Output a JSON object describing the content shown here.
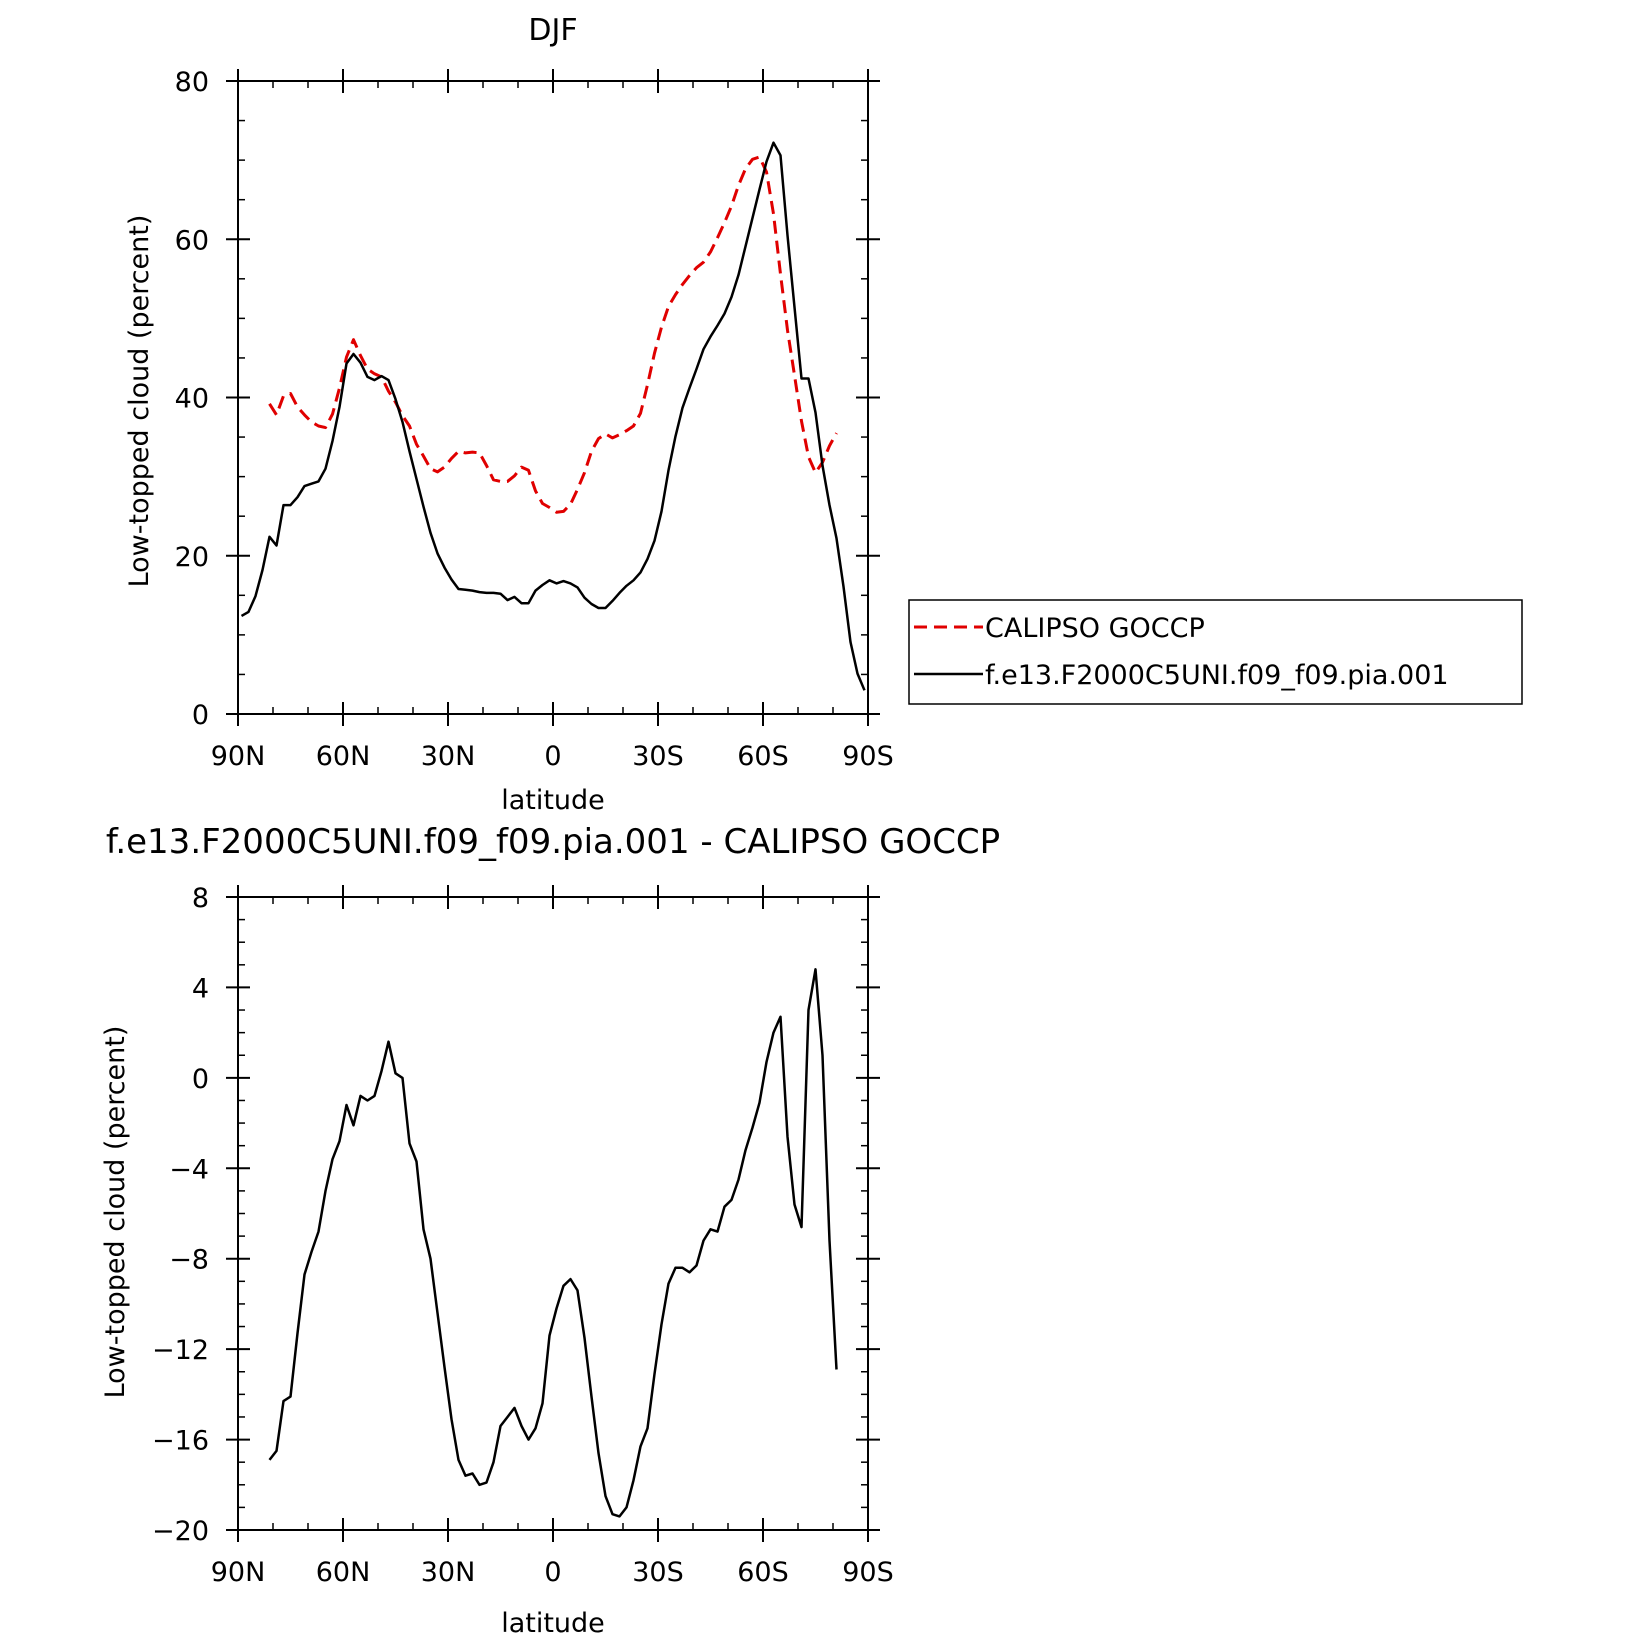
{
  "chart_data": [
    {
      "type": "line",
      "title": "DJF",
      "xlabel": "latitude",
      "ylabel": "Low-topped cloud (percent)",
      "xlim": [
        90,
        -90
      ],
      "ylim": [
        0,
        80
      ],
      "x_ticks": [
        90,
        60,
        30,
        0,
        -30,
        -60,
        -90
      ],
      "x_tick_labels": [
        "90N",
        "60N",
        "30N",
        "0",
        "30S",
        "60S",
        "90S"
      ],
      "y_ticks": [
        0,
        20,
        40,
        60,
        80
      ],
      "y_tick_labels": [
        "0",
        "20",
        "40",
        "60",
        "80"
      ],
      "grid": false,
      "legend_position": "right",
      "series": [
        {
          "name": "CALIPSO GOCCP",
          "color": "#e00000",
          "style": "dashed",
          "x": [
            81,
            79,
            77,
            75,
            73,
            71,
            69,
            67,
            65,
            63,
            61,
            59,
            57,
            55,
            53,
            51,
            49,
            47,
            45,
            43,
            41,
            39,
            37,
            35,
            33,
            31,
            29,
            27,
            25,
            23,
            21,
            19,
            17,
            15,
            13,
            11,
            9,
            7,
            5,
            3,
            1,
            -1,
            -3,
            -5,
            -7,
            -9,
            -11,
            -13,
            -15,
            -17,
            -19,
            -21,
            -23,
            -25,
            -27,
            -29,
            -31,
            -33,
            -35,
            -37,
            -39,
            -41,
            -43,
            -45,
            -47,
            -49,
            -51,
            -53,
            -55,
            -57,
            -59,
            -61,
            -63,
            -65,
            -67,
            -69,
            -71,
            -73,
            -75,
            -77,
            -79,
            -81
          ],
          "values": [
            39.2,
            37.8,
            40.2,
            40.5,
            38.8,
            37.8,
            36.9,
            36.4,
            36.2,
            37.9,
            41.2,
            45.1,
            47.3,
            45.3,
            43.6,
            43.0,
            42.6,
            40.8,
            39.4,
            37.7,
            36.4,
            34.1,
            32.6,
            31.0,
            30.6,
            31.2,
            32.3,
            33.2,
            33.0,
            33.1,
            33.0,
            31.4,
            29.6,
            29.4,
            29.4,
            30.1,
            31.2,
            30.8,
            28.2,
            26.6,
            26.1,
            25.5,
            25.6,
            26.5,
            28.4,
            30.5,
            33.2,
            34.8,
            35.4,
            34.9,
            35.3,
            35.8,
            36.4,
            38.0,
            41.6,
            45.6,
            48.9,
            51.5,
            53.0,
            54.3,
            55.4,
            56.4,
            57.1,
            58.4,
            60.2,
            62.1,
            64.2,
            66.8,
            68.9,
            70.1,
            70.4,
            68.5,
            63.2,
            55.6,
            48.5,
            42.8,
            37.0,
            32.5,
            30.5,
            31.8,
            33.9,
            35.5
          ]
        },
        {
          "name": "f.e13.F2000C5UNI.f09_f09.pia.001",
          "color": "#000000",
          "style": "solid",
          "x": [
            89,
            87,
            85,
            83,
            81,
            79,
            77,
            75,
            73,
            71,
            69,
            67,
            65,
            63,
            61,
            59,
            57,
            55,
            53,
            51,
            49,
            47,
            45,
            43,
            41,
            39,
            37,
            35,
            33,
            31,
            29,
            27,
            25,
            23,
            21,
            19,
            17,
            15,
            13,
            11,
            9,
            7,
            5,
            3,
            1,
            -1,
            -3,
            -5,
            -7,
            -9,
            -11,
            -13,
            -15,
            -17,
            -19,
            -21,
            -23,
            -25,
            -27,
            -29,
            -31,
            -33,
            -35,
            -37,
            -39,
            -41,
            -43,
            -45,
            -47,
            -49,
            -51,
            -53,
            -55,
            -57,
            -59,
            -61,
            -63,
            -65,
            -67,
            -69,
            -71,
            -73,
            -75,
            -77,
            -79,
            -81,
            -83,
            -85,
            -87,
            -89
          ],
          "values": [
            12.4,
            12.9,
            14.9,
            18.2,
            22.4,
            21.3,
            26.4,
            26.4,
            27.4,
            28.8,
            29.1,
            29.4,
            31.0,
            34.5,
            38.8,
            44.3,
            45.5,
            44.4,
            42.6,
            42.2,
            42.7,
            42.2,
            39.8,
            36.9,
            33.2,
            29.7,
            26.2,
            22.9,
            20.3,
            18.5,
            17.0,
            15.8,
            15.7,
            15.6,
            15.4,
            15.3,
            15.3,
            15.2,
            14.4,
            14.8,
            14.0,
            14.0,
            15.6,
            16.3,
            16.9,
            16.5,
            16.8,
            16.5,
            16.0,
            14.7,
            13.9,
            13.4,
            13.4,
            14.3,
            15.3,
            16.2,
            16.9,
            17.9,
            19.6,
            21.9,
            25.6,
            30.8,
            35.1,
            38.7,
            41.2,
            43.6,
            46.1,
            47.7,
            49.1,
            50.6,
            52.7,
            55.5,
            59.1,
            62.7,
            66.3,
            69.8,
            72.2,
            70.6,
            60.5,
            51.4,
            42.4,
            42.4,
            38.1,
            31.4,
            26.4,
            22.2,
            16.1,
            9.1,
            5.1,
            3.0
          ]
        }
      ]
    },
    {
      "type": "line",
      "title": "f.e13.F2000C5UNI.f09_f09.pia.001 - CALIPSO GOCCP",
      "xlabel": "latitude",
      "ylabel": "Low-topped cloud (percent)",
      "xlim": [
        90,
        -90
      ],
      "ylim": [
        -20,
        8
      ],
      "x_ticks": [
        90,
        60,
        30,
        0,
        -30,
        -60,
        -90
      ],
      "x_tick_labels": [
        "90N",
        "60N",
        "30N",
        "0",
        "30S",
        "60S",
        "90S"
      ],
      "y_ticks": [
        8,
        4,
        0,
        -4,
        -8,
        -12,
        -16,
        -20
      ],
      "y_tick_labels": [
        "8",
        "4",
        "0",
        "−4",
        "−8",
        "−12",
        "−16",
        "−20"
      ],
      "grid": false,
      "series": [
        {
          "color": "#000000",
          "style": "solid",
          "x": [
            81,
            79,
            77,
            75,
            73,
            71,
            69,
            67,
            65,
            63,
            61,
            59,
            57,
            55,
            53,
            51,
            49,
            47,
            45,
            43,
            41,
            39,
            37,
            35,
            33,
            31,
            29,
            27,
            25,
            23,
            21,
            19,
            17,
            15,
            13,
            11,
            9,
            7,
            5,
            3,
            1,
            -1,
            -3,
            -5,
            -7,
            -9,
            -11,
            -13,
            -15,
            -17,
            -19,
            -21,
            -23,
            -25,
            -27,
            -29,
            -31,
            -33,
            -35,
            -37,
            -39,
            -41,
            -43,
            -45,
            -47,
            -49,
            -51,
            -53,
            -55,
            -57,
            -59,
            -61,
            -63,
            -65,
            -67,
            -69,
            -71,
            -73,
            -75,
            -77,
            -79,
            -81
          ],
          "values": [
            -16.9,
            -16.5,
            -14.3,
            -14.1,
            -11.3,
            -8.7,
            -7.7,
            -6.8,
            -5.0,
            -3.6,
            -2.8,
            -1.2,
            -2.1,
            -0.8,
            -1.0,
            -0.8,
            0.3,
            1.6,
            0.2,
            0.0,
            -2.9,
            -3.7,
            -6.7,
            -8.0,
            -10.4,
            -12.8,
            -15.1,
            -16.9,
            -17.6,
            -17.5,
            -18.0,
            -17.9,
            -17.0,
            -15.4,
            -15.0,
            -14.6,
            -15.4,
            -16.0,
            -15.5,
            -14.4,
            -11.4,
            -10.2,
            -9.2,
            -8.9,
            -9.4,
            -11.5,
            -14.1,
            -16.6,
            -18.5,
            -19.3,
            -19.4,
            -19.0,
            -17.8,
            -16.3,
            -15.5,
            -13.1,
            -10.9,
            -9.1,
            -8.4,
            -8.4,
            -8.6,
            -8.3,
            -7.2,
            -6.7,
            -6.8,
            -5.7,
            -5.4,
            -4.5,
            -3.2,
            -2.2,
            -1.1,
            0.7,
            2.0,
            2.7,
            -2.6,
            -5.6,
            -6.6,
            3.0,
            4.8,
            1.0,
            -7.2,
            -12.9
          ]
        }
      ]
    }
  ]
}
